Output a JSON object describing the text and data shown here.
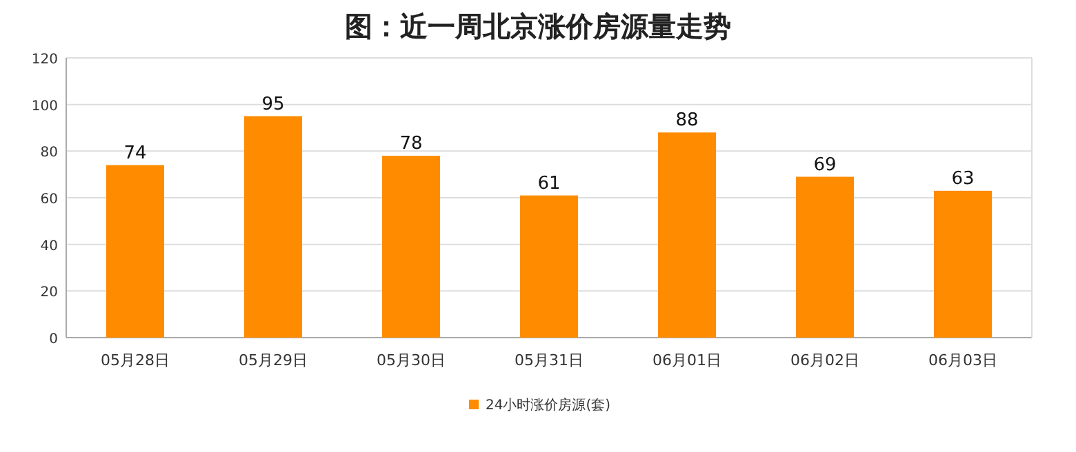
{
  "chart_data": {
    "type": "bar",
    "title": "图：近一周北京涨价房源量走势",
    "categories": [
      "05月28日",
      "05月29日",
      "05月30日",
      "05月31日",
      "06月01日",
      "06月02日",
      "06月03日"
    ],
    "series": [
      {
        "name": "24小时涨价房源(套)",
        "color": "#ff8c00",
        "values": [
          74,
          95,
          78,
          61,
          88,
          69,
          63
        ]
      }
    ],
    "ylim": [
      0,
      120
    ],
    "yticks": [
      0,
      20,
      40,
      60,
      80,
      100,
      120
    ],
    "grid": "y",
    "legend": "bottom",
    "data_labels": true
  }
}
